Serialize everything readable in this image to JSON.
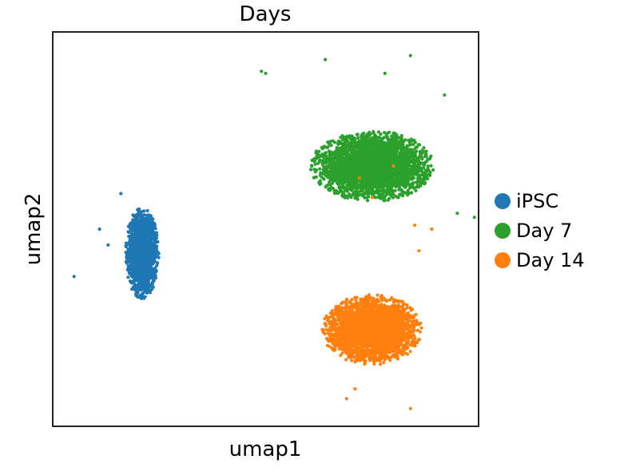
{
  "chart_data": {
    "type": "scatter",
    "title": "Days",
    "xlabel": "umap1",
    "ylabel": "umap2",
    "xlim": [
      0,
      10
    ],
    "ylim": [
      0,
      10
    ],
    "grid": false,
    "ticks": false,
    "legend_position": "right",
    "series": [
      {
        "name": "iPSC",
        "color": "#1f77b4",
        "count": 1600,
        "center": [
          2.1,
          4.4
        ],
        "spread": [
          0.35,
          1.05
        ],
        "outliers": [
          [
            0.5,
            3.8
          ],
          [
            1.1,
            5.0
          ],
          [
            1.3,
            4.6
          ],
          [
            1.6,
            5.9
          ]
        ]
      },
      {
        "name": "Day 7",
        "color": "#2ca02c",
        "count": 3200,
        "center": [
          7.5,
          6.6
        ],
        "spread": [
          1.3,
          0.8
        ],
        "outliers": [
          [
            4.9,
            9.0
          ],
          [
            5.0,
            8.95
          ],
          [
            6.4,
            9.3
          ],
          [
            7.8,
            8.95
          ],
          [
            8.4,
            9.4
          ],
          [
            9.2,
            8.4
          ],
          [
            9.9,
            5.3
          ],
          [
            9.5,
            5.4
          ]
        ]
      },
      {
        "name": "Day 14",
        "color": "#ff7f0e",
        "count": 2600,
        "center": [
          7.5,
          2.45
        ],
        "spread": [
          1.05,
          0.8
        ],
        "outliers": [
          [
            8.4,
            0.45
          ],
          [
            7.1,
            0.95
          ],
          [
            6.9,
            0.7
          ],
          [
            8.6,
            4.45
          ],
          [
            8.9,
            5.0
          ],
          [
            8.5,
            5.1
          ],
          [
            7.5,
            5.8
          ],
          [
            8.0,
            6.6
          ],
          [
            7.2,
            6.3
          ]
        ]
      }
    ]
  }
}
